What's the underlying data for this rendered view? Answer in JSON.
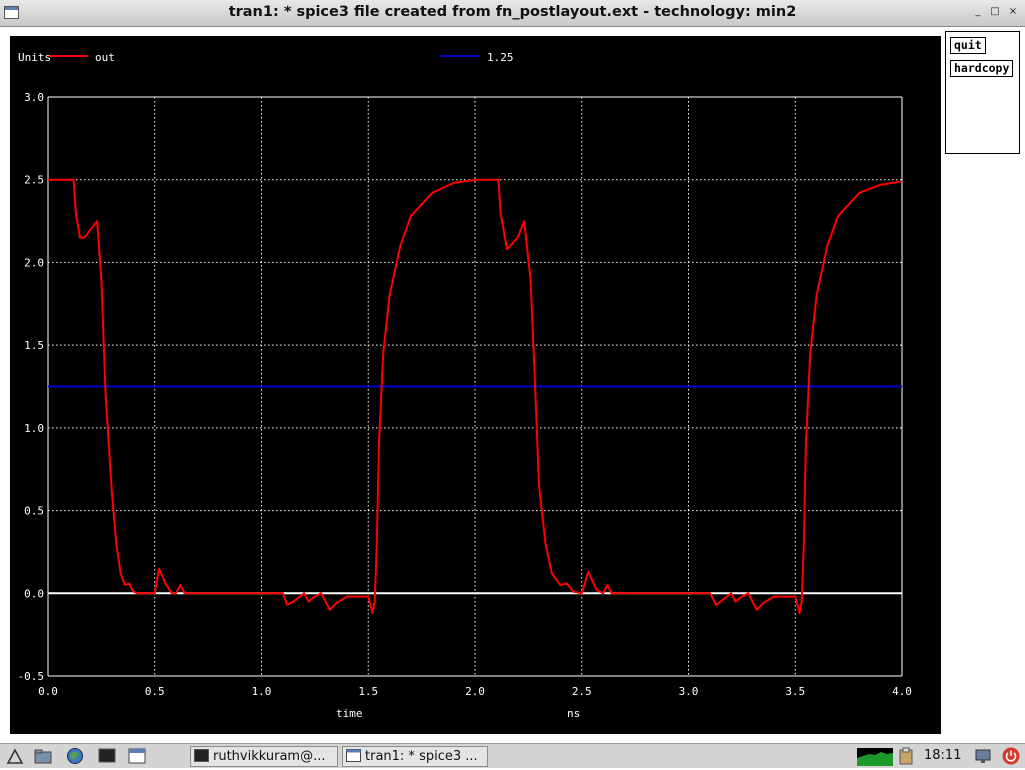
{
  "window": {
    "title": "tran1: * spice3 file created from fn_postlayout.ext - technology: min2",
    "controls": [
      "_",
      "□",
      "×"
    ]
  },
  "side_panel": {
    "quit_label": "quit",
    "hardcopy_label": "hardcopy"
  },
  "colors": {
    "background": "#000000",
    "grid": "#ffffff",
    "out": "#ff0000",
    "ref": "#0000cc",
    "zero": "#ffffff"
  },
  "chart_data": {
    "type": "line",
    "units_label": "Units",
    "xlabel": "time",
    "x_units": "ns",
    "xlim": [
      0.0,
      4.0
    ],
    "ylim": [
      -0.5,
      3.0
    ],
    "x_ticks": [
      "0.0",
      "0.5",
      "1.0",
      "1.5",
      "2.0",
      "2.5",
      "3.0",
      "3.5",
      "4.0"
    ],
    "y_ticks": [
      "-0.5",
      "0.0",
      "0.5",
      "1.0",
      "1.5",
      "2.0",
      "2.5",
      "3.0"
    ],
    "grid": true,
    "legend_placement": "top",
    "series": [
      {
        "name": "out",
        "color": "#ff0000",
        "x": [
          0.0,
          0.12,
          0.13,
          0.15,
          0.17,
          0.2,
          0.23,
          0.25,
          0.27,
          0.3,
          0.32,
          0.34,
          0.36,
          0.38,
          0.4,
          0.42,
          0.44,
          0.46,
          0.5,
          0.52,
          0.55,
          0.58,
          0.6,
          0.62,
          0.64,
          1.1,
          1.12,
          1.15,
          1.2,
          1.22,
          1.25,
          1.28,
          1.3,
          1.32,
          1.35,
          1.4,
          1.5,
          1.52,
          1.53,
          1.54,
          1.55,
          1.57,
          1.6,
          1.65,
          1.7,
          1.8,
          1.9,
          2.0,
          2.11,
          2.12,
          2.15,
          2.2,
          2.23,
          2.26,
          2.28,
          2.3,
          2.33,
          2.36,
          2.4,
          2.43,
          2.46,
          2.5,
          2.53,
          2.57,
          2.6,
          2.62,
          2.64,
          3.1,
          3.13,
          3.15,
          3.2,
          3.22,
          3.25,
          3.28,
          3.3,
          3.32,
          3.35,
          3.4,
          3.5,
          3.52,
          3.53,
          3.54,
          3.55,
          3.57,
          3.6,
          3.65,
          3.7,
          3.8,
          3.9,
          4.0
        ],
        "y": [
          2.5,
          2.5,
          2.3,
          2.15,
          2.15,
          2.2,
          2.25,
          1.9,
          1.2,
          0.6,
          0.3,
          0.12,
          0.05,
          0.06,
          0.01,
          0.0,
          0.0,
          0.0,
          0.0,
          0.15,
          0.06,
          0.0,
          0.0,
          0.05,
          0.0,
          0.0,
          -0.07,
          -0.05,
          0.0,
          -0.05,
          -0.02,
          0.0,
          -0.05,
          -0.1,
          -0.06,
          -0.02,
          -0.02,
          -0.12,
          -0.05,
          0.3,
          0.9,
          1.45,
          1.8,
          2.1,
          2.28,
          2.42,
          2.48,
          2.5,
          2.5,
          2.3,
          2.08,
          2.15,
          2.25,
          1.9,
          1.3,
          0.65,
          0.3,
          0.12,
          0.05,
          0.06,
          0.01,
          0.0,
          0.13,
          0.02,
          0.0,
          0.05,
          0.0,
          0.0,
          -0.07,
          -0.05,
          0.0,
          -0.05,
          -0.02,
          0.0,
          -0.05,
          -0.1,
          -0.06,
          -0.02,
          -0.02,
          -0.12,
          -0.05,
          0.3,
          0.9,
          1.45,
          1.8,
          2.1,
          2.28,
          2.42,
          2.47,
          2.49
        ]
      },
      {
        "name": "1.25",
        "color": "#0000cc",
        "x": [
          0.0,
          4.0
        ],
        "y": [
          1.25,
          1.25
        ]
      }
    ]
  },
  "taskbar": {
    "tasks": [
      {
        "label": "ruthvikkuram@..."
      },
      {
        "label": "tran1: * spice3 ..."
      }
    ],
    "clock": "18:11"
  }
}
